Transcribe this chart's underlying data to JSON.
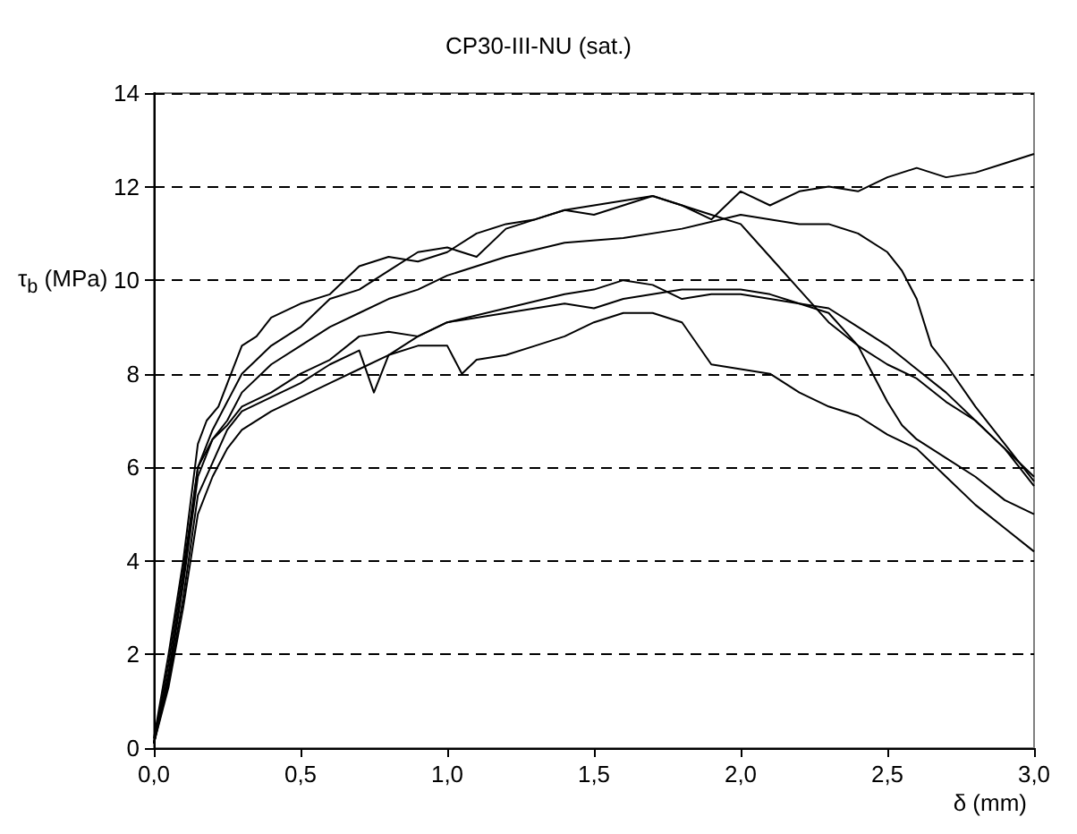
{
  "chart_data": {
    "type": "line",
    "title": "CP30-III-NU (sat.)",
    "xlabel": "δ (mm)",
    "ylabel": "τ$_{b}$ (MPa)",
    "xlim": [
      0,
      3
    ],
    "xticks": [
      {
        "value": 0,
        "label": "0,0"
      },
      {
        "value": 0.5,
        "label": "0,5"
      },
      {
        "value": 1,
        "label": "1,0"
      },
      {
        "value": 1.5,
        "label": "1,5"
      },
      {
        "value": 2,
        "label": "2,0"
      },
      {
        "value": 2.5,
        "label": "2,5"
      },
      {
        "value": 3,
        "label": "3,0"
      }
    ],
    "ylim": [
      0,
      14
    ],
    "yticks": [
      0,
      2,
      4,
      6,
      8,
      10,
      12,
      14
    ],
    "grid": "y",
    "marker": "none",
    "line_style": "solid",
    "series": [
      {
        "color": "#000000",
        "x": [
          0,
          0.05,
          0.1,
          0.15,
          0.18,
          0.22,
          0.3,
          0.35,
          0.4,
          0.5,
          0.6,
          0.7,
          0.8,
          0.9,
          1.0,
          1.1,
          1.2,
          1.3,
          1.4,
          1.5,
          1.6,
          1.7,
          1.8,
          1.9,
          2.0,
          2.1,
          2.2,
          2.3,
          2.4,
          2.5,
          2.6,
          2.7,
          2.8,
          2.9,
          3.0
        ],
        "values": [
          0.2,
          2,
          4,
          6.5,
          7,
          7.3,
          8.6,
          8.8,
          9.2,
          9.5,
          9.7,
          10.3,
          10.5,
          10.4,
          10.6,
          11,
          11.2,
          11.3,
          11.5,
          11.4,
          11.6,
          11.8,
          11.6,
          11.3,
          11.9,
          11.6,
          11.9,
          12,
          11.9,
          12.2,
          12.4,
          12.2,
          12.3,
          12.5,
          12.7
        ]
      },
      {
        "color": "#000000",
        "x": [
          0,
          0.05,
          0.1,
          0.15,
          0.2,
          0.25,
          0.3,
          0.4,
          0.5,
          0.6,
          0.7,
          0.8,
          0.9,
          1.0,
          1.1,
          1.2,
          1.3,
          1.4,
          1.5,
          1.6,
          1.7,
          1.8,
          1.9,
          2.0,
          2.1,
          2.2,
          2.3,
          2.4,
          2.5,
          2.6,
          2.7,
          2.8,
          2.9,
          3.0
        ],
        "values": [
          0.1,
          1.8,
          3.8,
          6,
          6.8,
          7.4,
          8,
          8.6,
          9,
          9.6,
          9.8,
          10.2,
          10.6,
          10.7,
          10.5,
          11.1,
          11.3,
          11.5,
          11.6,
          11.7,
          11.8,
          11.6,
          11.4,
          11.2,
          10.5,
          9.8,
          9.1,
          8.6,
          8.2,
          7.9,
          7.4,
          7,
          6.4,
          5.6
        ]
      },
      {
        "color": "#000000",
        "x": [
          0,
          0.05,
          0.1,
          0.15,
          0.2,
          0.25,
          0.3,
          0.4,
          0.5,
          0.6,
          0.7,
          0.8,
          0.9,
          1.0,
          1.2,
          1.4,
          1.6,
          1.8,
          2.0,
          2.1,
          2.2,
          2.3,
          2.4,
          2.5,
          2.55,
          2.6,
          2.65,
          2.7,
          2.8,
          2.9,
          3.0
        ],
        "values": [
          0.1,
          1.5,
          3.5,
          5.8,
          6.6,
          7,
          7.6,
          8.2,
          8.6,
          9,
          9.3,
          9.6,
          9.8,
          10.1,
          10.5,
          10.8,
          10.9,
          11.1,
          11.4,
          11.3,
          11.2,
          11.2,
          11,
          10.6,
          10.2,
          9.6,
          8.6,
          8.2,
          7.3,
          6.5,
          5.7
        ]
      },
      {
        "color": "#000000",
        "x": [
          0,
          0.05,
          0.1,
          0.15,
          0.2,
          0.25,
          0.3,
          0.4,
          0.5,
          0.6,
          0.7,
          0.8,
          0.9,
          1.0,
          1.2,
          1.4,
          1.5,
          1.6,
          1.7,
          1.8,
          1.9,
          2.0,
          2.1,
          2.2,
          2.3,
          2.4,
          2.45,
          2.5,
          2.55,
          2.6,
          2.7,
          2.8,
          2.9,
          3.0
        ],
        "values": [
          0.1,
          1.6,
          3.6,
          6,
          6.6,
          6.9,
          7.3,
          7.6,
          8,
          8.3,
          8.8,
          8.9,
          8.8,
          9.1,
          9.4,
          9.7,
          9.8,
          10,
          9.9,
          9.6,
          9.7,
          9.7,
          9.6,
          9.5,
          9.3,
          8.6,
          8,
          7.4,
          6.9,
          6.6,
          6.2,
          5.8,
          5.3,
          5.0
        ]
      },
      {
        "color": "#000000",
        "x": [
          0,
          0.05,
          0.1,
          0.15,
          0.2,
          0.25,
          0.3,
          0.4,
          0.5,
          0.6,
          0.7,
          0.75,
          0.8,
          0.9,
          1.0,
          1.2,
          1.4,
          1.5,
          1.6,
          1.8,
          2.0,
          2.1,
          2.2,
          2.3,
          2.4,
          2.5,
          2.6,
          2.7,
          2.8,
          2.9,
          3.0
        ],
        "values": [
          0.1,
          1.4,
          3.2,
          5.4,
          6.1,
          6.8,
          7.2,
          7.5,
          7.8,
          8.2,
          8.5,
          7.6,
          8.4,
          8.8,
          9.1,
          9.3,
          9.5,
          9.4,
          9.6,
          9.8,
          9.8,
          9.7,
          9.5,
          9.4,
          9.0,
          8.6,
          8.1,
          7.6,
          7,
          6.4,
          5.8
        ]
      },
      {
        "color": "#000000",
        "x": [
          0,
          0.05,
          0.1,
          0.15,
          0.2,
          0.25,
          0.3,
          0.4,
          0.5,
          0.6,
          0.7,
          0.8,
          0.9,
          1.0,
          1.05,
          1.1,
          1.2,
          1.3,
          1.4,
          1.5,
          1.6,
          1.7,
          1.8,
          1.9,
          2.0,
          2.1,
          2.2,
          2.3,
          2.4,
          2.5,
          2.6,
          2.7,
          2.8,
          2.9,
          3.0
        ],
        "values": [
          0.1,
          1.3,
          3,
          5,
          5.8,
          6.4,
          6.8,
          7.2,
          7.5,
          7.8,
          8.1,
          8.4,
          8.6,
          8.6,
          8,
          8.3,
          8.4,
          8.6,
          8.8,
          9.1,
          9.3,
          9.3,
          9.1,
          8.2,
          8.1,
          8.0,
          7.6,
          7.3,
          7.1,
          6.7,
          6.4,
          5.8,
          5.2,
          4.7,
          4.2
        ]
      }
    ]
  }
}
